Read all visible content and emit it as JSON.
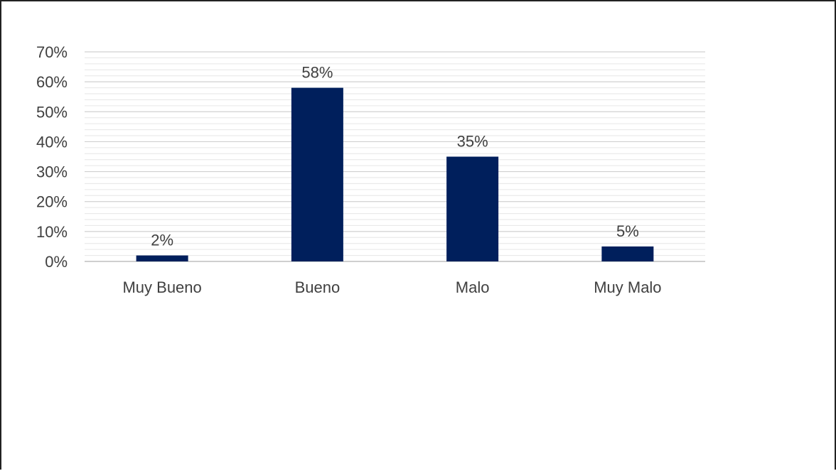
{
  "chart_data": {
    "type": "bar",
    "categories": [
      "Muy Bueno",
      "Bueno",
      "Malo",
      "Muy Malo"
    ],
    "values": [
      2,
      58,
      35,
      5
    ],
    "data_labels": [
      "2%",
      "58%",
      "35%",
      "5%"
    ],
    "ylim": [
      0,
      70
    ],
    "yticks": [
      0,
      10,
      20,
      30,
      40,
      50,
      60,
      70
    ],
    "ytick_labels": [
      "0%",
      "10%",
      "20%",
      "30%",
      "40%",
      "50%",
      "60%",
      "70%"
    ],
    "title": "",
    "xlabel": "",
    "ylabel": "",
    "grid": true,
    "legend": false,
    "colors": {
      "bar": "#001f5c",
      "major_grid": "#d0d0d0",
      "minor_grid": "#e6e6e6",
      "text": "#404040"
    }
  }
}
